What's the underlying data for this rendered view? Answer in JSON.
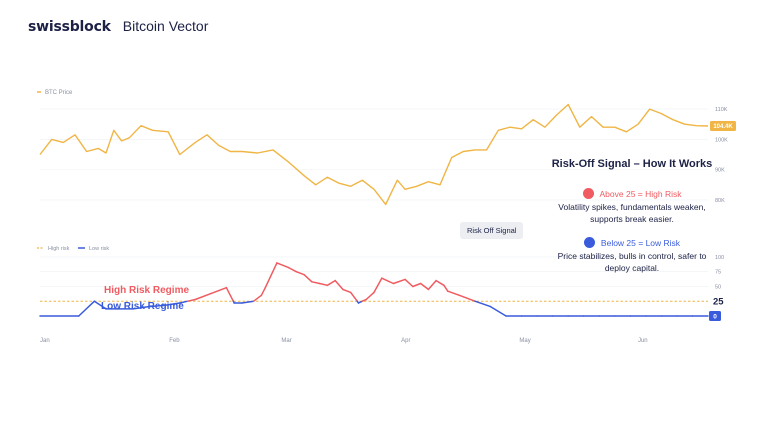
{
  "header": {
    "brand": "swissblock",
    "product": "Bitcoin Vector"
  },
  "legend": {
    "btc": "BTC Price",
    "high": "High risk",
    "low": "Low risk"
  },
  "colors": {
    "btc": "#f0b545",
    "high": "#ef5b60",
    "low": "#3a5cdc",
    "threshold": "#f0b545",
    "text": "#1c2145",
    "grid": "#eef0f4"
  },
  "annotations": {
    "high_regime": "High Risk Regime",
    "low_regime": "Low Risk Regime",
    "risk_off_button": "Risk Off Signal"
  },
  "panel": {
    "title": "Risk-Off Signal – How It Works",
    "high_head": "Above 25 = High Risk",
    "high_desc": "Volatility spikes, fundamentals weaken, supports break easier.",
    "low_head": "Below 25 = Low Risk",
    "low_desc": "Price stabilizes, bulls in control, safer to deploy capital."
  },
  "chart_data": [
    {
      "type": "line",
      "series": [
        {
          "name": "BTC Price"
        }
      ],
      "y_ticks": [
        "110K",
        "100K",
        "90K",
        "80K"
      ],
      "ylim": [
        76000,
        113000
      ],
      "last_value_label": "104.4K",
      "x_ticks": [
        "Jan",
        "Feb",
        "Mar",
        "Apr",
        "May",
        "Jun"
      ],
      "x": [
        0,
        3,
        6,
        9,
        12,
        15,
        17,
        19,
        21,
        23,
        26,
        29,
        33,
        36,
        40,
        43,
        46,
        49,
        52,
        56,
        60,
        64,
        68,
        71,
        74,
        77,
        80,
        83,
        86,
        89,
        92,
        94,
        97,
        100,
        103,
        106,
        109,
        112,
        115,
        118,
        121,
        124,
        127,
        130,
        133,
        136,
        139,
        142,
        145,
        148,
        151,
        154,
        157,
        160,
        163,
        166,
        169,
        172
      ],
      "y": [
        95000,
        100000,
        99000,
        101500,
        96000,
        97000,
        95500,
        103000,
        99500,
        100500,
        104500,
        103000,
        102500,
        95000,
        99000,
        101500,
        98000,
        96000,
        96000,
        95500,
        96500,
        92500,
        88000,
        85000,
        87500,
        85500,
        84500,
        86500,
        83500,
        78500,
        86500,
        83500,
        84500,
        86000,
        85000,
        94000,
        96000,
        96500,
        96500,
        103000,
        104000,
        103500,
        106500,
        104000,
        108000,
        111500,
        104000,
        107500,
        104000,
        104000,
        102500,
        105000,
        110000,
        108500,
        106500,
        105000,
        104500,
        104400
      ]
    },
    {
      "type": "line",
      "series": [
        {
          "name": "High risk"
        },
        {
          "name": "Low risk"
        }
      ],
      "threshold": 25,
      "y_ticks": [
        "100",
        "75",
        "50",
        "25",
        "0"
      ],
      "ylim": [
        0,
        105
      ],
      "x": [
        0,
        10,
        14,
        17,
        20,
        24,
        28,
        32,
        36,
        40,
        44,
        48,
        50,
        52,
        55,
        57,
        58,
        61,
        64,
        66,
        68,
        70,
        72,
        74,
        76,
        78,
        80,
        82,
        84,
        86,
        88,
        91,
        94,
        96,
        98,
        100,
        102,
        104,
        105,
        108,
        112,
        116,
        120,
        124,
        128,
        132,
        136,
        140,
        144,
        148,
        152,
        156,
        160,
        164,
        168,
        172
      ],
      "y": [
        0,
        0,
        25,
        12,
        12,
        12,
        16,
        18,
        22,
        28,
        38,
        48,
        22,
        22,
        25,
        35,
        48,
        90,
        82,
        75,
        70,
        58,
        55,
        52,
        60,
        45,
        40,
        22,
        28,
        40,
        64,
        55,
        62,
        50,
        55,
        45,
        60,
        52,
        42,
        35,
        25,
        16,
        0,
        0,
        0,
        0,
        0,
        0,
        0,
        0,
        0,
        0,
        0,
        0,
        0,
        0
      ],
      "last_value_label": "0"
    }
  ]
}
